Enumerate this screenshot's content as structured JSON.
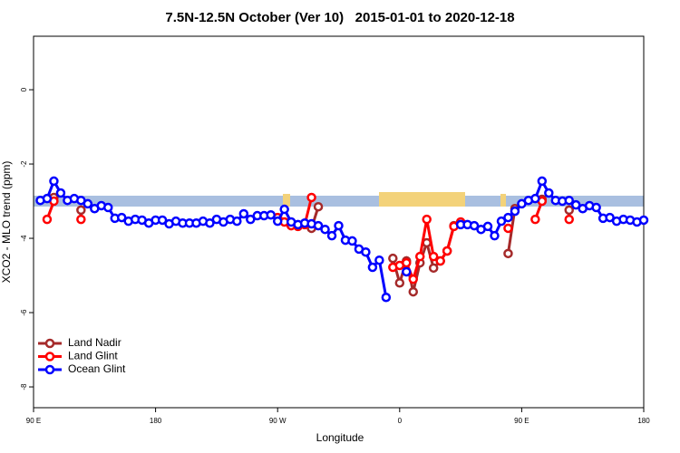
{
  "chart_data": {
    "type": "line",
    "title": "7.5N-12.5N October (Ver 10)   2015-01-01 to 2020-12-18",
    "x_label": "Longitude",
    "y_label": "XCO2 - MLO trend (ppm)",
    "xlim": [
      90,
      540
    ],
    "ylim": [
      -8.56,
      1.44
    ],
    "xticks": [
      {
        "value": 90,
        "label": "90 E"
      },
      180,
      {
        "value": 270,
        "label": "90 W"
      },
      {
        "value": 360,
        "label": "0"
      },
      {
        "value": 450,
        "label": "90 E"
      },
      {
        "value": 540,
        "label": "180"
      }
    ],
    "yticks": [
      0,
      -2,
      -4,
      -6,
      -8
    ],
    "legend": "bottomleft",
    "x": [
      95,
      100,
      105,
      110,
      115,
      120,
      125,
      130,
      135,
      140,
      145,
      150,
      155,
      160,
      165,
      170,
      175,
      180,
      185,
      190,
      195,
      200,
      205,
      210,
      215,
      220,
      225,
      230,
      235,
      240,
      245,
      250,
      255,
      260,
      265,
      270,
      275,
      280,
      285,
      290,
      295,
      300,
      305,
      310,
      315,
      320,
      325,
      330,
      335,
      340,
      345,
      350,
      355,
      360,
      365,
      370,
      375,
      380,
      385,
      390,
      395,
      400,
      405,
      410,
      415,
      420,
      425,
      430,
      435,
      440,
      445,
      450,
      455,
      460,
      465,
      470,
      475,
      480,
      485,
      490,
      495,
      500,
      505,
      510,
      515,
      520,
      525,
      530,
      535,
      540
    ],
    "series": [
      {
        "name": "Land Nadir",
        "color": "#a52a2a",
        "values": [
          null,
          null,
          -2.9,
          null,
          null,
          null,
          -3.24,
          null,
          null,
          null,
          null,
          null,
          null,
          null,
          null,
          null,
          null,
          null,
          null,
          null,
          null,
          null,
          null,
          null,
          null,
          null,
          null,
          null,
          null,
          null,
          null,
          null,
          null,
          null,
          null,
          null,
          null,
          null,
          null,
          null,
          -3.73,
          -3.15,
          null,
          null,
          null,
          null,
          null,
          null,
          null,
          null,
          null,
          null,
          -4.54,
          -5.2,
          -4.61,
          -5.44,
          -4.66,
          -4.12,
          -4.8,
          -4.61,
          -4.34,
          -3.66,
          null,
          null,
          null,
          null,
          null,
          null,
          null,
          -4.41,
          -3.2,
          null,
          null,
          null,
          -2.95,
          null,
          null,
          null,
          -3.24,
          null,
          null,
          null,
          null,
          null,
          null,
          null,
          null,
          null,
          null,
          null
        ]
      },
      {
        "name": "Land Glint",
        "color": "#ff0000",
        "values": [
          null,
          -3.49,
          -3.0,
          null,
          null,
          null,
          -3.49,
          null,
          null,
          null,
          null,
          null,
          null,
          null,
          null,
          null,
          null,
          null,
          null,
          null,
          null,
          null,
          null,
          null,
          null,
          null,
          null,
          null,
          null,
          null,
          null,
          null,
          null,
          null,
          null,
          -3.44,
          -3.56,
          -3.66,
          -3.68,
          -3.63,
          -2.9,
          null,
          null,
          null,
          null,
          null,
          null,
          null,
          null,
          null,
          null,
          null,
          -4.78,
          -4.73,
          -4.66,
          -5.1,
          -4.49,
          -3.49,
          -4.49,
          -4.61,
          -4.34,
          -3.68,
          -3.56,
          null,
          null,
          null,
          null,
          null,
          null,
          -3.73,
          null,
          null,
          null,
          -3.49,
          -3.0,
          null,
          null,
          null,
          -3.49,
          null,
          null,
          null,
          null,
          null,
          null,
          null,
          null,
          null,
          null,
          null
        ]
      },
      {
        "name": "Ocean Glint",
        "color": "#0000ff",
        "values": [
          -2.98,
          -2.93,
          -2.46,
          -2.78,
          -2.98,
          -2.93,
          -2.98,
          -3.07,
          -3.2,
          -3.12,
          -3.17,
          -3.46,
          -3.44,
          -3.54,
          -3.49,
          -3.51,
          -3.59,
          -3.51,
          -3.51,
          -3.61,
          -3.54,
          -3.59,
          -3.59,
          -3.59,
          -3.54,
          -3.59,
          -3.49,
          -3.56,
          -3.49,
          -3.54,
          -3.34,
          -3.49,
          -3.39,
          -3.39,
          -3.37,
          -3.54,
          -3.22,
          -3.56,
          -3.63,
          -3.59,
          -3.61,
          -3.66,
          -3.76,
          -3.93,
          -3.66,
          -4.05,
          -4.07,
          -4.29,
          -4.37,
          -4.78,
          -4.59,
          -5.59,
          null,
          null,
          -4.9,
          null,
          null,
          null,
          null,
          null,
          null,
          null,
          -3.63,
          -3.63,
          -3.66,
          -3.76,
          -3.68,
          -3.93,
          -3.54,
          -3.44,
          -3.27,
          -3.07,
          -2.98,
          -2.93,
          -2.46,
          -2.78,
          -2.98,
          -3.0,
          -2.98,
          -3.1,
          -3.2,
          -3.12,
          -3.17,
          -3.46,
          -3.44,
          -3.54,
          -3.49,
          -3.51,
          -3.56,
          -3.51
        ]
      }
    ]
  }
}
